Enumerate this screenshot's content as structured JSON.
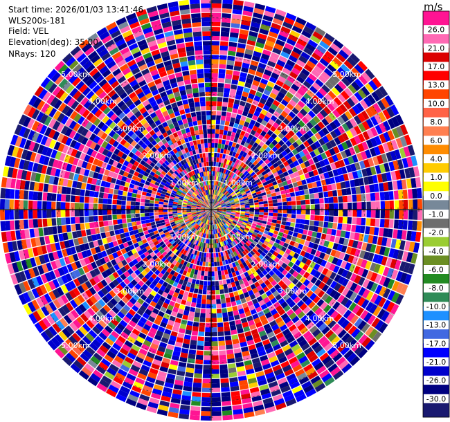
{
  "info": {
    "start_time": "Start time: 2026/01/03 13:41:46",
    "instrument": "WLS200s-181",
    "field": "Field: VEL",
    "elevation": "Elevation(deg): 35.00",
    "nrays": "NRays: 120"
  },
  "colorbar": {
    "unit": "m/s",
    "levels": [
      "26.0",
      "21.0",
      "17.0",
      "13.0",
      "10.0",
      "8.0",
      "6.0",
      "4.0",
      "1.0",
      "0.0",
      "-1.0",
      "-2.0",
      "-4.0",
      "-6.0",
      "-8.0",
      "-10.0",
      "-13.0",
      "-17.0",
      "-21.0",
      "-26.0",
      "-30.0"
    ],
    "colors": [
      "#ff1493",
      "#ff69b4",
      "#dc0000",
      "#ff0000",
      "#ff4500",
      "#ff6347",
      "#ff7f50",
      "#ff8c00",
      "#ffcc00",
      "#ffff00",
      "#778899",
      "#6e6e6e",
      "#9acd32",
      "#6b8e23",
      "#228b22",
      "#2e8b57",
      "#1e90ff",
      "#4169e1",
      "#0000ff",
      "#0000cd",
      "#000080",
      "#191970"
    ]
  },
  "chart_data": {
    "type": "heatmap",
    "projection": "polar",
    "field": "VEL",
    "n_rays": 120,
    "elevation_deg": 35.0,
    "range_max_km": 5.5,
    "range_rings_km": [
      1.0,
      2.0,
      3.0,
      4.0,
      5.0
    ],
    "ring_labels": [
      "1.00km",
      "2.00km",
      "3.00km",
      "4.00km",
      "5.00km"
    ],
    "vmin": -30.0,
    "vmax": 26.0
  }
}
